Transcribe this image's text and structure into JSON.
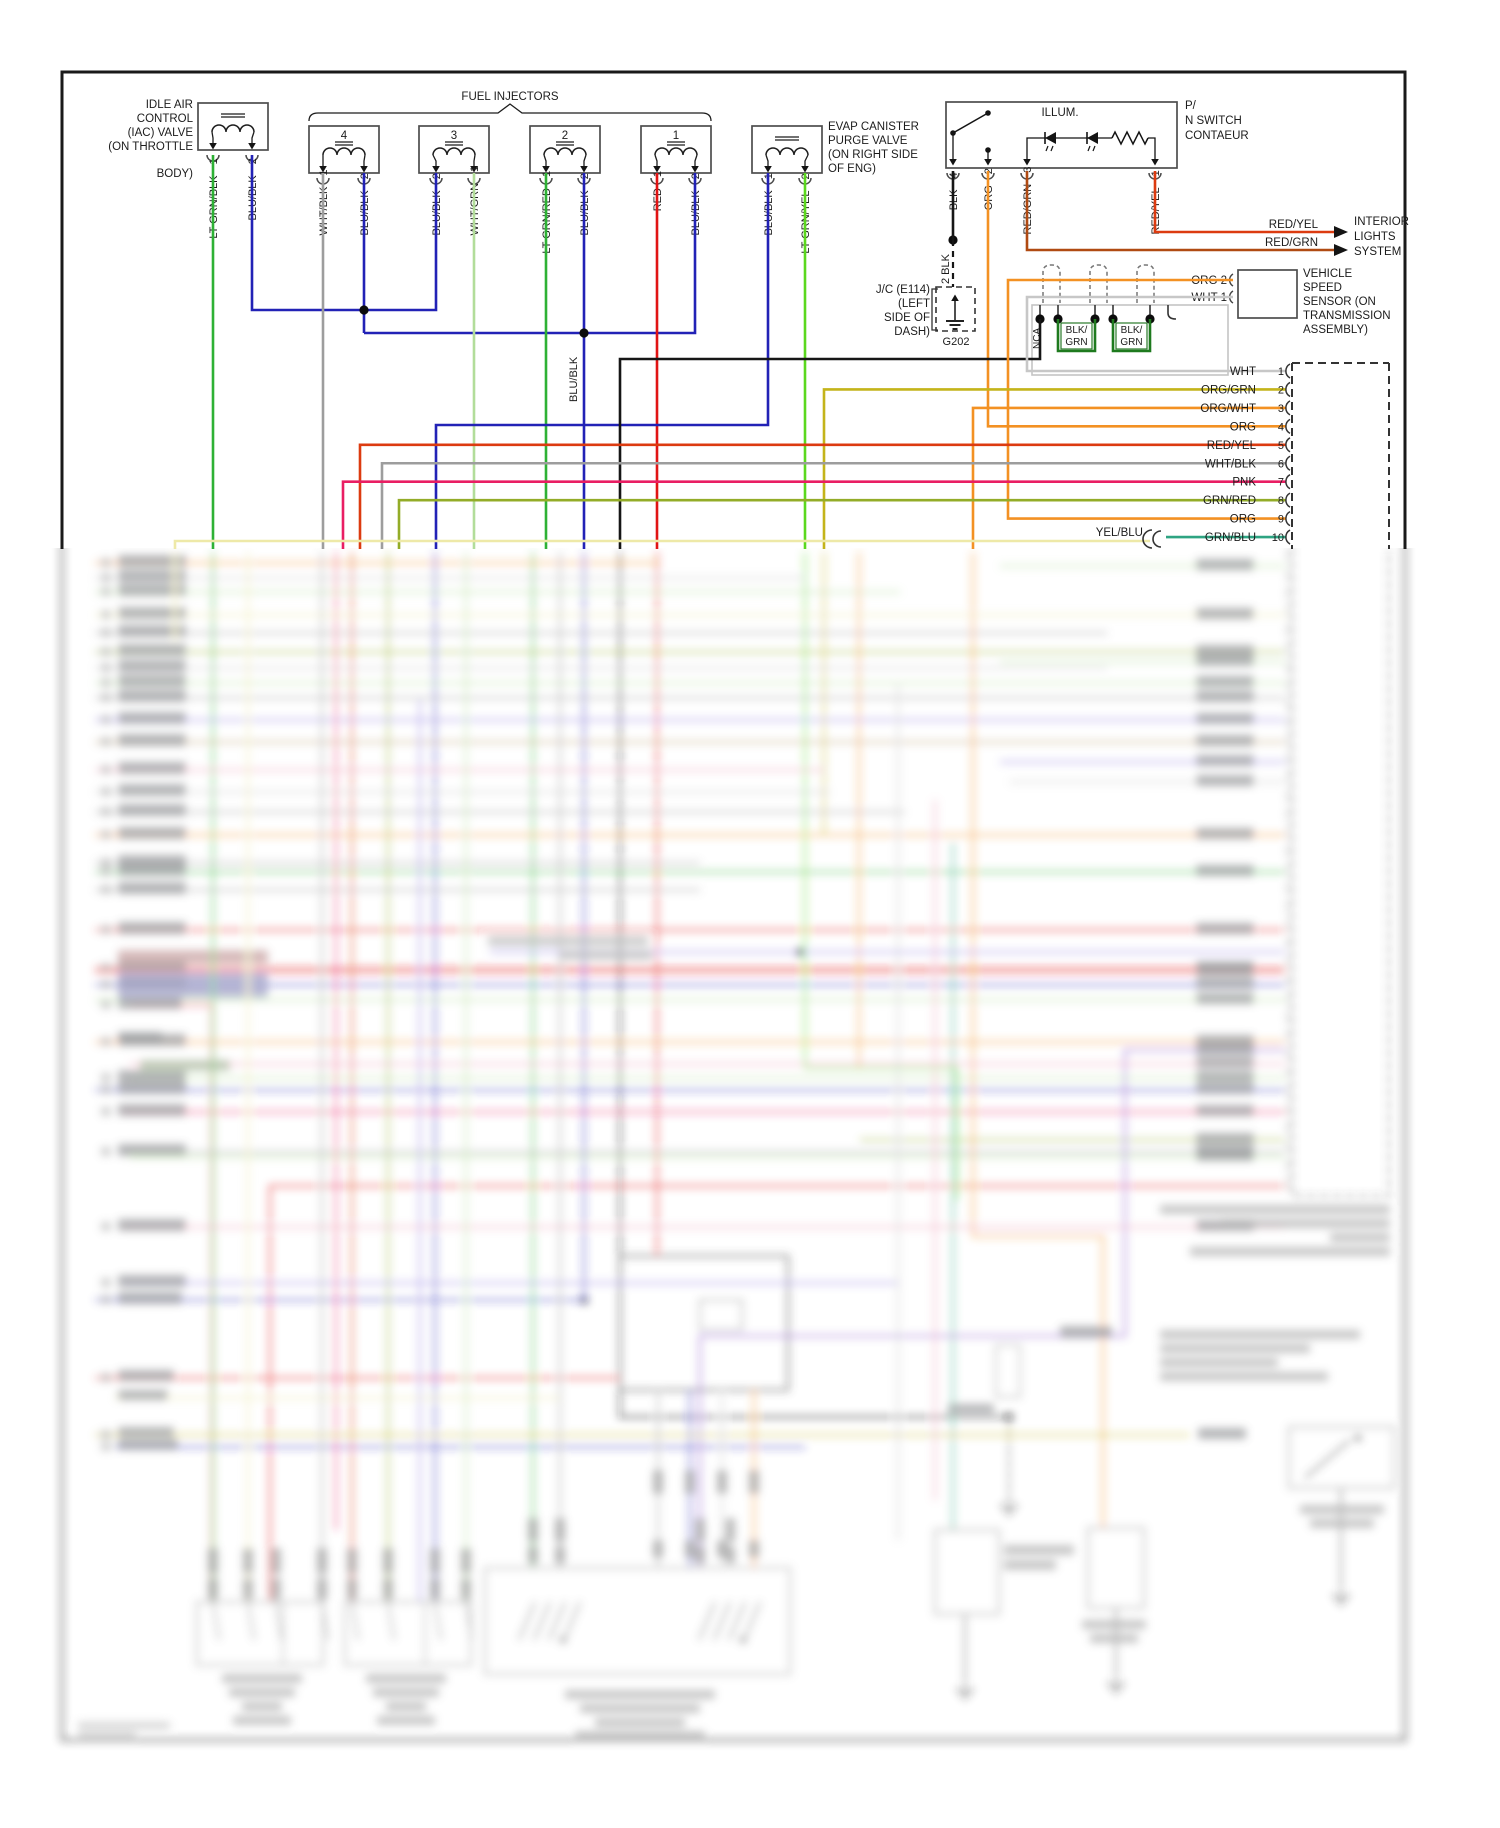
{
  "diagram": {
    "iac": {
      "label_lines": [
        "IDLE AIR",
        "CONTROL",
        "(IAC) VALVE",
        "(ON THROTTLE",
        "BODY)"
      ],
      "pins": [
        {
          "num": "1",
          "wire": "LT GRN/BLK"
        },
        {
          "num": "2",
          "wire": "BLU/BLK"
        }
      ]
    },
    "fuel_injectors": {
      "title": "FUEL INJECTORS",
      "injectors": [
        {
          "id": "4",
          "pins": [
            {
              "num": "1",
              "wire": "WHT/BLK"
            },
            {
              "num": "2",
              "wire": "BLU/BLK"
            }
          ]
        },
        {
          "id": "3",
          "pins": [
            {
              "num": "2",
              "wire": "BLU/BLK"
            },
            {
              "num": "1",
              "wire": "WHT/GRN"
            }
          ]
        },
        {
          "id": "2",
          "pins": [
            {
              "num": "1",
              "wire": "LT GRN/RED"
            },
            {
              "num": "2",
              "wire": "BLU/BLK"
            }
          ]
        },
        {
          "id": "1",
          "pins": [
            {
              "num": "1",
              "wire": "RED"
            },
            {
              "num": "2",
              "wire": "BLU/BLK"
            }
          ]
        }
      ]
    },
    "evap": {
      "label_lines": [
        "EVAP CANISTER",
        "PURGE VALVE",
        "(ON RIGHT SIDE",
        "OF ENG)"
      ],
      "pins": [
        {
          "num": "1",
          "wire": "BLU/BLK"
        },
        {
          "num": "2",
          "wire": "LT GRN/YEL"
        }
      ]
    },
    "pn_switch": {
      "label_lines": [
        "P/",
        "N SWITCH",
        "CONTAEUR"
      ],
      "illum_label": "ILLUM.",
      "pins": [
        {
          "num": "4",
          "wire": "BLK"
        },
        {
          "num": "2",
          "wire": "ORG"
        },
        {
          "num": "3",
          "wire": "RED/GRN"
        },
        {
          "num": "1",
          "wire": "RED/YEL"
        }
      ]
    },
    "junction": {
      "label_lines": [
        "J/C (E114)",
        "(LEFT",
        "SIDE OF",
        "DASH)"
      ],
      "wire_label": "2 BLK",
      "ground_id": "G202"
    },
    "interior_lights": {
      "wire_labels": [
        "RED/YEL",
        "RED/GRN"
      ],
      "dest_lines": [
        "INTERIOR",
        "LIGHTS",
        "SYSTEM"
      ]
    },
    "vss": {
      "pin_labels": [
        "ORG  2",
        "WHT  1"
      ],
      "dest_lines": [
        "VEHICLE",
        "SPEED",
        "SENSOR (ON",
        "TRANSMISSION",
        "ASSEMBLY)"
      ]
    },
    "inline_connector": {
      "nca": "NCA",
      "pair_label_lines": [
        "BLK/",
        "GRN"
      ]
    },
    "mid_wire_label": "BLU/BLK",
    "ecm_rows": [
      {
        "num": "1",
        "wire": "WHT"
      },
      {
        "num": "2",
        "wire": "ORG/GRN"
      },
      {
        "num": "3",
        "wire": "ORG/WHT"
      },
      {
        "num": "4",
        "wire": "ORG"
      },
      {
        "num": "5",
        "wire": "RED/YEL"
      },
      {
        "num": "6",
        "wire": "WHT/BLK"
      },
      {
        "num": "7",
        "wire": "PNK"
      },
      {
        "num": "8",
        "wire": "GRN/RED"
      },
      {
        "num": "9",
        "wire": "ORG"
      },
      {
        "num": "10",
        "wire": "GRN/BLU"
      }
    ],
    "splice_label": "YEL/BLU"
  },
  "colors": {
    "frame": "#1a1a1a",
    "box_stroke": "#4d4d4d",
    "text": "#1c1c1c",
    "grn": "#2eb135",
    "lgn": "#5bd81e",
    "pgn": "#b2dd9a",
    "blu": "#2222b6",
    "gry": "#9d9d9d",
    "lgy": "#c7c7c7",
    "red": "#e11414",
    "org": "#f39123",
    "dky": "#c4b41a",
    "olv": "#93ac28",
    "pnk": "#e91e63",
    "teal": "#2ea482",
    "pyl": "#eee9a8",
    "rgn": "#b04a12",
    "ryl": "#dc3b10",
    "blk": "#161616",
    "mag": "#ef9ab4",
    "vio": "#8d7ae0",
    "pur": "#8650c8",
    "tan": "#b89a6a",
    "blob": "#4a4d53",
    "conn": "#c4c4c4",
    "dgrn": "#1e7a1e"
  }
}
